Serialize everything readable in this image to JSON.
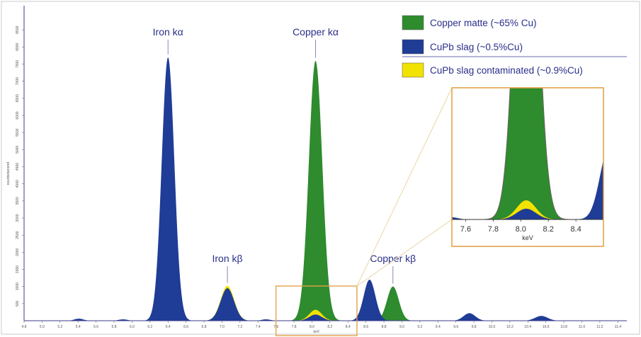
{
  "chart_data": {
    "type": "area",
    "xlabel": "keV",
    "ylabel": "counts/second",
    "xlim": [
      4.8,
      11.5
    ],
    "ylim": [
      0,
      9000
    ],
    "x_ticks": [
      "4.8",
      "5.0",
      "5.2",
      "5.4",
      "5.6",
      "5.8",
      "6.0",
      "6.2",
      "6.4",
      "6.6",
      "6.8",
      "7.0",
      "7.2",
      "7.4",
      "7.6",
      "7.8",
      "8.0",
      "8.2",
      "8.4",
      "8.6",
      "8.8",
      "9.0",
      "9.2",
      "9.4",
      "9.6",
      "9.8",
      "10.0",
      "10.2",
      "10.4",
      "10.6",
      "10.8",
      "11.0",
      "11.2",
      "11.4"
    ],
    "y_ticks": [
      "500",
      "1000",
      "1500",
      "2000",
      "2500",
      "3000",
      "3500",
      "4000",
      "4500",
      "5000",
      "5500",
      "6000",
      "6500",
      "7000",
      "7500",
      "8000",
      "8500"
    ],
    "series": [
      {
        "name": "Copper matte (~65% Cu)",
        "color": "#2e8b2e",
        "peaks": [
          {
            "center": 8.04,
            "height": 7600,
            "width": 0.075
          },
          {
            "center": 8.9,
            "height": 1000,
            "width": 0.065
          }
        ]
      },
      {
        "name": "CuPb slag (~0.5%Cu)",
        "color": "#1f3c96",
        "peaks": [
          {
            "center": 5.41,
            "height": 60,
            "width": 0.05
          },
          {
            "center": 5.9,
            "height": 40,
            "width": 0.05
          },
          {
            "center": 6.4,
            "height": 7700,
            "width": 0.07
          },
          {
            "center": 7.06,
            "height": 950,
            "width": 0.075
          },
          {
            "center": 7.49,
            "height": 40,
            "width": 0.05
          },
          {
            "center": 8.04,
            "height": 180,
            "width": 0.07
          },
          {
            "center": 8.64,
            "height": 1200,
            "width": 0.065
          },
          {
            "center": 9.75,
            "height": 220,
            "width": 0.065
          },
          {
            "center": 10.55,
            "height": 140,
            "width": 0.07
          }
        ]
      },
      {
        "name": "CuPb slag contaminated (~0.9%Cu)",
        "color": "#f2e200",
        "peaks": [
          {
            "center": 7.06,
            "height": 1020,
            "width": 0.075
          },
          {
            "center": 8.04,
            "height": 320,
            "width": 0.07
          }
        ]
      }
    ],
    "annotations": [
      {
        "text": "Iron kα",
        "x": 6.4
      },
      {
        "text": "Iron kβ",
        "x": 7.06
      },
      {
        "text": "Copper kα",
        "x": 8.04
      },
      {
        "text": "Copper kβ",
        "x": 8.9
      }
    ],
    "legend_placement": "top-right",
    "inset": {
      "xlim": [
        7.5,
        8.6
      ],
      "ylim": [
        0,
        2200
      ],
      "x_ticks": [
        "7.6",
        "7.8",
        "8.0",
        "8.2",
        "8.4"
      ],
      "xlabel": "keV",
      "zoom_region": {
        "xlim": [
          7.6,
          8.5
        ]
      }
    },
    "grid": false
  },
  "colors": {
    "frame": "#c9c9c9",
    "axis": "#3d3d8a",
    "inset_border": "#e3a34a"
  }
}
